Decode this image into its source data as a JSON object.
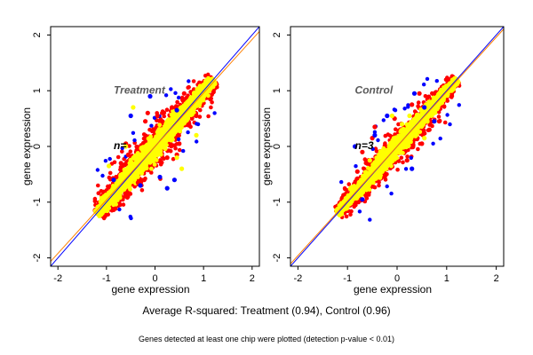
{
  "chart_data": [
    {
      "type": "scatter",
      "title": "Treatment",
      "n_label": "n=",
      "xlabel": "gene expression",
      "ylabel": "gene expression",
      "xlim": [
        -2.15,
        2.15
      ],
      "ylim": [
        -2.15,
        2.15
      ],
      "xticks": [
        -2,
        -1,
        0,
        1,
        2
      ],
      "yticks": [
        -2,
        -1,
        0,
        1,
        2
      ],
      "grid": false,
      "lines": [
        {
          "name": "",
          "color": "#0000ff",
          "slope": 1.0,
          "intercept": 0
        },
        {
          "name": "",
          "color": "#ff7f00",
          "slope": 0.96,
          "intercept": 0
        }
      ],
      "cloud": {
        "x_range": [
          -1.2,
          1.2
        ],
        "core_halfwidth": 0.17,
        "outer_halfwidth": 0.38,
        "point_colors": {
          "core": "#ffff00",
          "outer": "#ff0000",
          "rare": "#0000ff"
        }
      },
      "series": [
        {
          "name": "",
          "color": "#ff0000",
          "points": [
            [
              -0.55,
              -0.15
            ],
            [
              0.35,
              0.7
            ],
            [
              -0.2,
              0.45
            ],
            [
              0.45,
              -0.15
            ],
            [
              -0.8,
              -0.55
            ],
            [
              0.7,
              0.4
            ],
            [
              0.05,
              0.55
            ],
            [
              -0.35,
              -0.65
            ],
            [
              0.25,
              -0.2
            ],
            [
              -0.6,
              0.05
            ],
            [
              0.85,
              0.55
            ],
            [
              -0.15,
              0.6
            ],
            [
              0.6,
              0.95
            ],
            [
              -0.7,
              -0.3
            ],
            [
              0.15,
              0.45
            ],
            [
              0.5,
              0.05
            ]
          ]
        },
        {
          "name": "",
          "color": "#0000ff",
          "points": [
            [
              0.25,
              -0.75
            ],
            [
              -0.1,
              0.9
            ],
            [
              0.4,
              -0.6
            ],
            [
              -0.5,
              0.55
            ],
            [
              0.1,
              -0.55
            ],
            [
              -0.85,
              -0.6
            ],
            [
              0.45,
              0.65
            ],
            [
              -0.3,
              -0.7
            ]
          ]
        },
        {
          "name": "",
          "color": "#ffff00",
          "points": [
            [
              0.55,
              -0.4
            ],
            [
              -0.45,
              0.7
            ],
            [
              0.85,
              0.2
            ],
            [
              -0.95,
              -0.35
            ],
            [
              0.2,
              0.35
            ],
            [
              -0.2,
              -0.35
            ],
            [
              0.45,
              -0.2
            ],
            [
              -0.6,
              0.0
            ]
          ]
        }
      ]
    },
    {
      "type": "scatter",
      "title": "Control",
      "n_label": "n=3",
      "xlabel": "gene expression",
      "ylabel": "gene expression",
      "xlim": [
        -2.15,
        2.15
      ],
      "ylim": [
        -2.15,
        2.15
      ],
      "xticks": [
        -2,
        -1,
        0,
        1,
        2
      ],
      "yticks": [
        -2,
        -1,
        0,
        1,
        2
      ],
      "grid": false,
      "lines": [
        {
          "name": "",
          "color": "#0000ff",
          "slope": 1.0,
          "intercept": 0
        },
        {
          "name": "",
          "color": "#ff7f00",
          "slope": 0.98,
          "intercept": 0
        }
      ],
      "cloud": {
        "x_range": [
          -1.2,
          1.2
        ],
        "core_halfwidth": 0.13,
        "outer_halfwidth": 0.3,
        "point_colors": {
          "core": "#ffff00",
          "outer": "#ff0000",
          "rare": "#0000ff"
        }
      },
      "series": [
        {
          "name": "",
          "color": "#ff0000",
          "points": [
            [
              -0.45,
              0.35
            ],
            [
              0.5,
              0.05
            ],
            [
              -0.7,
              -0.1
            ],
            [
              0.3,
              0.75
            ],
            [
              -0.25,
              -0.55
            ],
            [
              0.65,
              0.3
            ],
            [
              -0.05,
              0.5
            ],
            [
              0.2,
              -0.25
            ],
            [
              -0.8,
              -0.45
            ],
            [
              0.45,
              0.95
            ],
            [
              0.85,
              0.45
            ],
            [
              -0.5,
              0.15
            ]
          ]
        },
        {
          "name": "",
          "color": "#0000ff",
          "points": [
            [
              0.35,
              0.95
            ],
            [
              0.55,
              0.7
            ],
            [
              -0.7,
              -0.95
            ],
            [
              0.75,
              0.45
            ],
            [
              -0.2,
              0.55
            ],
            [
              0.3,
              -0.4
            ],
            [
              -0.45,
              0.2
            ],
            [
              -0.85,
              0.0
            ]
          ]
        },
        {
          "name": "",
          "color": "#ffff00",
          "points": [
            [
              -0.1,
              0.55
            ],
            [
              0.25,
              0.55
            ],
            [
              0.55,
              0.15
            ],
            [
              -0.55,
              -0.25
            ],
            [
              -0.3,
              -0.45
            ],
            [
              0.1,
              0.4
            ]
          ]
        }
      ]
    }
  ],
  "captions": {
    "main": "Average R-squared: Treatment (0.94), Control (0.96)",
    "note": "Genes detected at least one chip were plotted (detection p-value < 0.01)"
  }
}
